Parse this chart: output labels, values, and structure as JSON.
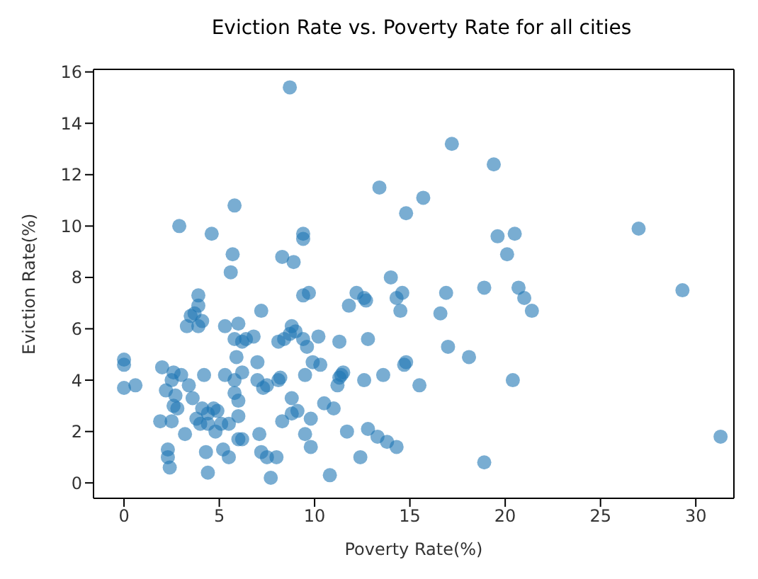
{
  "chart_data": {
    "type": "scatter",
    "title": "Eviction Rate vs. Poverty Rate for all cities",
    "xlabel": "Poverty Rate(%)",
    "ylabel": "Eviction Rate(%)",
    "xlim": [
      -1.6,
      32
    ],
    "ylim": [
      -0.6,
      16.1
    ],
    "xticks": [
      0,
      5,
      10,
      15,
      20,
      25,
      30
    ],
    "yticks": [
      0,
      2,
      4,
      6,
      8,
      10,
      12,
      14,
      16
    ],
    "grid": false,
    "legend": false,
    "marker": "circle",
    "series": [
      {
        "color": "#1f77b4",
        "x": [
          8.7,
          17.2,
          19.4,
          13.4,
          15.7,
          14.8,
          2.9,
          27,
          5.8,
          4.6,
          9.4,
          9.4,
          20.5,
          19.6,
          20.1,
          5.7,
          8.3,
          8.9,
          5.6,
          14,
          29.3,
          16.9,
          18.9,
          20.7,
          21,
          21.4,
          16.6,
          14.3,
          14.6,
          12.2,
          12.6,
          12.7,
          11.8,
          9.7,
          9.4,
          3.9,
          3.9,
          3.5,
          3.7,
          4.1,
          3.3,
          3.9,
          5.3,
          6,
          7.2,
          8.8,
          9.0,
          10.2,
          11.3,
          12.8,
          6.8,
          6.2,
          6.4,
          5.8,
          8.1,
          8.4,
          8.7,
          9.4,
          9.6,
          14.5,
          17,
          18.1,
          15.5,
          20.4,
          31.3,
          18.9,
          0,
          0,
          0,
          0.6,
          2,
          2.6,
          2.5,
          3,
          2.2,
          2.7,
          2.8,
          2.6,
          3.4,
          3.6,
          4.2,
          4.1,
          4.4,
          4.9,
          5.3,
          5.8,
          5.8,
          6.2,
          7.0,
          6.0,
          4,
          3.8,
          4.4,
          1.9,
          2.5,
          3.2,
          4.7,
          5.1,
          5.5,
          6.0,
          5.2,
          7.1,
          6.2,
          4.8,
          2.3,
          2.3,
          2.4,
          4.3,
          4.4,
          5.5,
          7.2,
          7.5,
          8.0,
          7.7,
          8.1,
          8.2,
          7.3,
          7.5,
          8.8,
          9.1,
          8.3,
          8.8,
          9.8,
          9.5,
          9.8,
          10.8,
          9.9,
          9.5,
          10.5,
          11,
          11.2,
          11.3,
          11.5,
          11.4,
          12.6,
          11.7,
          12.8,
          13.3,
          13.8,
          14.3,
          13.6,
          14.8,
          14.7,
          12.4,
          10.3,
          6.0,
          7.0,
          5.9
        ],
        "values": [
          15.4,
          13.2,
          12.4,
          11.5,
          11.1,
          10.5,
          10.0,
          9.9,
          10.8,
          9.7,
          9.7,
          9.5,
          9.7,
          9.6,
          8.9,
          8.9,
          8.8,
          8.6,
          8.2,
          8,
          7.5,
          7.4,
          7.6,
          7.6,
          7.2,
          6.7,
          6.6,
          7.2,
          7.4,
          7.4,
          7.2,
          7.1,
          6.9,
          7.4,
          7.3,
          7.3,
          6.9,
          6.5,
          6.6,
          6.3,
          6.1,
          6.1,
          6.1,
          6.2,
          6.7,
          6.1,
          5.9,
          5.7,
          5.5,
          5.6,
          5.7,
          5.5,
          5.6,
          5.6,
          5.5,
          5.6,
          5.8,
          5.6,
          5.3,
          6.7,
          5.3,
          4.9,
          3.8,
          4.0,
          1.8,
          0.8,
          4.8,
          4.6,
          3.7,
          3.8,
          4.5,
          4.3,
          4.0,
          4.2,
          3.6,
          3.4,
          2.9,
          3.0,
          3.8,
          3.3,
          4.2,
          2.9,
          2.7,
          2.8,
          4.2,
          4.0,
          3.5,
          4.3,
          4.0,
          3.2,
          2.3,
          2.5,
          2.3,
          2.4,
          2.4,
          1.9,
          2.9,
          2.3,
          2.3,
          1.7,
          1.3,
          1.9,
          1.7,
          2.0,
          1.3,
          1.0,
          0.6,
          1.2,
          0.4,
          1.0,
          1.2,
          1.0,
          1.0,
          0.2,
          4.0,
          4.1,
          3.7,
          3.8,
          3.3,
          2.8,
          2.4,
          2.7,
          2.5,
          1.9,
          1.4,
          0.3,
          4.7,
          4.2,
          3.1,
          2.9,
          3.8,
          4.1,
          4.3,
          4.2,
          4.0,
          2.0,
          2.1,
          1.8,
          1.6,
          1.4,
          4.2,
          4.7,
          4.6,
          1.0,
          4.6,
          2.6,
          4.7,
          4.9
        ]
      }
    ]
  }
}
